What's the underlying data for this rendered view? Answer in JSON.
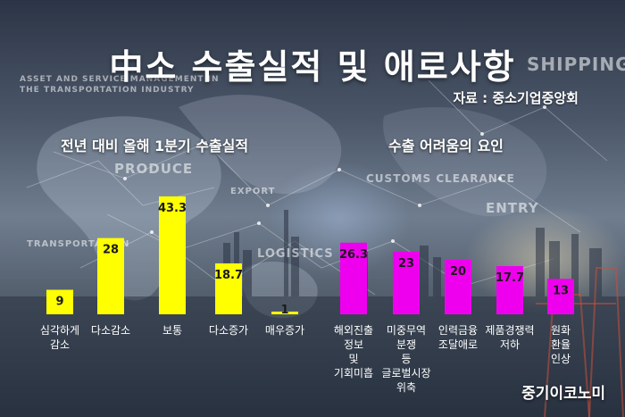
{
  "title": "中소 수출실적 및 애로사항",
  "source": "자료 : 중소기업중앙회",
  "credit": "중기이코노미",
  "background_words": [
    "ASSET AND SERVICE MANAGEMENT IN",
    "THE TRANSPORTATION INDUSTRY",
    "PRODUCE",
    "EXPORT",
    "TRANSPORTATION",
    "LOGISTICS",
    "CUSTOMS CLEARANCE",
    "SHIPPING",
    "ENTRY"
  ],
  "colors": {
    "left_bars": "#ffff00",
    "right_bars": "#ee00ee",
    "text": "#ffffff"
  },
  "chart_data": [
    {
      "type": "bar",
      "title": "전년 대비 올해 1분기 수출실적",
      "categories": [
        "심각하게 감소",
        "다소감소",
        "보통",
        "다소증가",
        "매우증가"
      ],
      "values": [
        9,
        28,
        43.3,
        18.7,
        1
      ],
      "color": "#ffff00"
    },
    {
      "type": "bar",
      "title": "수출 어려움의 요인",
      "categories": [
        "해외진출 정보 및 기회미흡",
        "미중무역 분쟁 등 글로벌시장 위축",
        "인력금융 조달애로",
        "제품경쟁력 저하",
        "원화 환율 인상"
      ],
      "values": [
        26.3,
        23,
        20,
        17.7,
        13
      ],
      "color": "#ee00ee"
    }
  ]
}
